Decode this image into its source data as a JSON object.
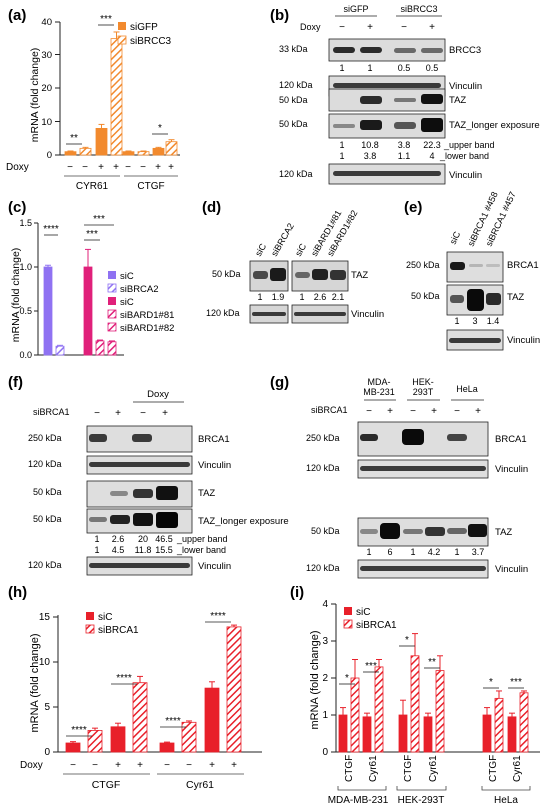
{
  "colors": {
    "orange": "#f28a2e",
    "purple": "#8f72f2",
    "magenta": "#e0207a",
    "red": "#e8202a",
    "blot_band": "#1a1a1a",
    "blot_bg": "#d9d9d9"
  },
  "panels": {
    "a": {
      "label": "(a)",
      "ylabel": "mRNA (fold change)",
      "yticks": [
        "0",
        "10",
        "20",
        "30",
        "40"
      ],
      "legend": [
        "siGFP",
        "siBRCC3"
      ],
      "doxy_label": "Doxy",
      "doxy_signs": [
        "−",
        "−",
        "+",
        "+",
        "−",
        "−",
        "+",
        "+"
      ],
      "groups": [
        "CYR61",
        "CTGF"
      ],
      "sig": [
        "**",
        "***",
        "*"
      ]
    },
    "b": {
      "label": "(b)",
      "doxy_label": "Doxy",
      "conditions": [
        "siGFP",
        "siBRCC3"
      ],
      "doxy_signs": [
        "−",
        "+",
        "−",
        "+"
      ],
      "rows": [
        {
          "kda": "33 kDa",
          "protein": "BRCC3"
        },
        {
          "kda": "120 kDa",
          "protein": "Vinculin"
        },
        {
          "kda": "50 kDa",
          "protein": "TAZ"
        },
        {
          "kda": "50 kDa",
          "protein": "TAZ_longer exposure"
        },
        {
          "kda": "120 kDa",
          "protein": "Vinculin"
        }
      ],
      "quant_brcc3": [
        "1",
        "1",
        "0.5",
        "0.5"
      ],
      "quant_upper": [
        "1",
        "10.8",
        "3.8",
        "22.3"
      ],
      "quant_lower": [
        "1",
        "3.8",
        "1.1",
        "4"
      ],
      "upper_label": "_upper band",
      "lower_label": "_lower band"
    },
    "c": {
      "label": "(c)",
      "ylabel": "mRNA (fold change)",
      "yticks": [
        "0.0",
        "0.5",
        "1.0",
        "1.5"
      ],
      "legend": [
        "siC",
        "siBRCA2",
        "siC",
        "siBARD1#81",
        "siBARD1#82"
      ],
      "sig": [
        "****",
        "***",
        "***"
      ]
    },
    "d": {
      "label": "(d)",
      "lanes": [
        "siC",
        "siBRCA2",
        "siC",
        "siBARD1#81",
        "siBARD1#82"
      ],
      "rows": [
        {
          "kda": "50 kDa",
          "protein": "TAZ"
        },
        {
          "kda": "120 kDa",
          "protein": "Vinculin"
        }
      ],
      "quant": [
        "1",
        "1.9",
        "1",
        "2.6",
        "2.1"
      ]
    },
    "e": {
      "label": "(e)",
      "lanes": [
        "siC",
        "siBRCA1 #458",
        "siBRCA1 #457"
      ],
      "rows": [
        {
          "kda": "250 kDa",
          "protein": "BRCA1"
        },
        {
          "kda": "50 kDa",
          "protein": "TAZ"
        },
        {
          "kda": "",
          "protein": "Vinculin"
        }
      ],
      "quant": [
        "1",
        "3",
        "1.4"
      ]
    },
    "f": {
      "label": "(f)",
      "doxy_label": "Doxy",
      "row_label": "siBRCA1",
      "signs": [
        "−",
        "+",
        "−",
        "+"
      ],
      "rows": [
        {
          "kda": "250 kDa",
          "protein": "BRCA1"
        },
        {
          "kda": "120 kDa",
          "protein": "Vinculin"
        },
        {
          "kda": "50 kDa",
          "protein": "TAZ"
        },
        {
          "kda": "50 kDa",
          "protein": "TAZ_longer exposure"
        },
        {
          "kda": "120 kDa",
          "protein": "Vinculin"
        }
      ],
      "quant_upper": [
        "1",
        "2.6",
        "20",
        "46.5"
      ],
      "quant_lower": [
        "1",
        "4.5",
        "11.8",
        "15.5"
      ],
      "upper_label": "_upper band",
      "lower_label": "_lower band"
    },
    "g": {
      "label": "(g)",
      "cell_lines": [
        "MDA-",
        "MB-231",
        "HEK-",
        "293T",
        "HeLa"
      ],
      "row_label": "siBRCA1",
      "signs": [
        "−",
        "+",
        "−",
        "+",
        "−",
        "+"
      ],
      "rows": [
        {
          "kda": "250 kDa",
          "protein": "BRCA1"
        },
        {
          "kda": "120 kDa",
          "protein": "Vinculin"
        },
        {
          "kda": "50 kDa",
          "protein": "TAZ"
        },
        {
          "kda": "120 kDa",
          "protein": "Vinculin"
        }
      ],
      "quant": [
        "1",
        "6",
        "1",
        "4.2",
        "1",
        "3.7"
      ]
    },
    "h": {
      "label": "(h)",
      "ylabel": "mRNA (fold change)",
      "yticks": [
        "0",
        "5",
        "10",
        "15"
      ],
      "legend": [
        "siC",
        "siBRCA1"
      ],
      "doxy_label": "Doxy",
      "doxy_signs": [
        "−",
        "−",
        "+",
        "+",
        "−",
        "−",
        "+",
        "+"
      ],
      "groups": [
        "CTGF",
        "Cyr61"
      ],
      "sig": [
        "****",
        "****",
        "****",
        "****"
      ]
    },
    "i": {
      "label": "(i)",
      "ylabel": "mRNA (fold change)",
      "yticks": [
        "0",
        "1",
        "2",
        "3",
        "4"
      ],
      "legend": [
        "siC",
        "siBRCA1"
      ],
      "genes": [
        "CTGF",
        "Cyr61",
        "CTGF",
        "Cyr61",
        "CTGF",
        "Cyr61"
      ],
      "cell_lines": [
        "MDA-MB-231",
        "HEK-293T",
        "HeLa"
      ],
      "sig": [
        "*",
        "***",
        "*",
        "**",
        "*",
        "***"
      ]
    }
  },
  "chart_data": [
    {
      "panel": "a",
      "type": "bar",
      "ylabel": "mRNA (fold change)",
      "ylim": [
        0,
        40
      ],
      "categories": [
        "CYR61 −/−",
        "CYR61 +/+",
        "CTGF −/−",
        "CTGF +/+"
      ],
      "series": [
        {
          "name": "siGFP",
          "values": [
            1,
            8,
            1,
            2
          ],
          "errors": [
            0.2,
            1.2,
            0.2,
            0.3
          ]
        },
        {
          "name": "siBRCC3",
          "values": [
            2,
            35,
            1,
            4
          ],
          "errors": [
            0.3,
            2,
            0.2,
            0.6
          ]
        }
      ]
    },
    {
      "panel": "c",
      "type": "bar",
      "ylabel": "mRNA (fold change)",
      "ylim": [
        0,
        1.5
      ],
      "categories": [
        "siC",
        "siBRCA2",
        "siC",
        "siBARD1#81",
        "siBARD1#82"
      ],
      "values": [
        1.0,
        0.1,
        1.0,
        0.16,
        0.15
      ],
      "errors": [
        0.02,
        0.01,
        0.2,
        0.01,
        0.01
      ]
    },
    {
      "panel": "h",
      "type": "bar",
      "ylabel": "mRNA (fold change)",
      "ylim": [
        0,
        15
      ],
      "categories": [
        "CTGF −/−",
        "CTGF +/+",
        "Cyr61 −/−",
        "Cyr61 +/+"
      ],
      "series": [
        {
          "name": "siC",
          "values": [
            1,
            2.8,
            1,
            7.1
          ],
          "errors": [
            0.15,
            0.4,
            0.1,
            0.7
          ]
        },
        {
          "name": "siBRCA1",
          "values": [
            2.4,
            7.7,
            3.3,
            13.9
          ],
          "errors": [
            0.25,
            0.7,
            0.15,
            0.2
          ]
        }
      ]
    },
    {
      "panel": "i",
      "type": "bar",
      "ylabel": "mRNA (fold change)",
      "ylim": [
        0,
        4
      ],
      "categories": [
        "MDA-MB-231 CTGF",
        "MDA-MB-231 Cyr61",
        "HEK-293T CTGF",
        "HEK-293T Cyr61",
        "HeLa CTGF",
        "HeLa Cyr61"
      ],
      "series": [
        {
          "name": "siC",
          "values": [
            1.0,
            0.95,
            1.0,
            0.95,
            1.0,
            0.95
          ],
          "errors": [
            0.2,
            0.1,
            0.4,
            0.1,
            0.2,
            0.1
          ]
        },
        {
          "name": "siBRCA1",
          "values": [
            2.0,
            2.3,
            2.6,
            2.2,
            1.45,
            1.6
          ],
          "errors": [
            0.5,
            0.2,
            0.6,
            0.4,
            0.2,
            0.05
          ]
        }
      ]
    }
  ]
}
